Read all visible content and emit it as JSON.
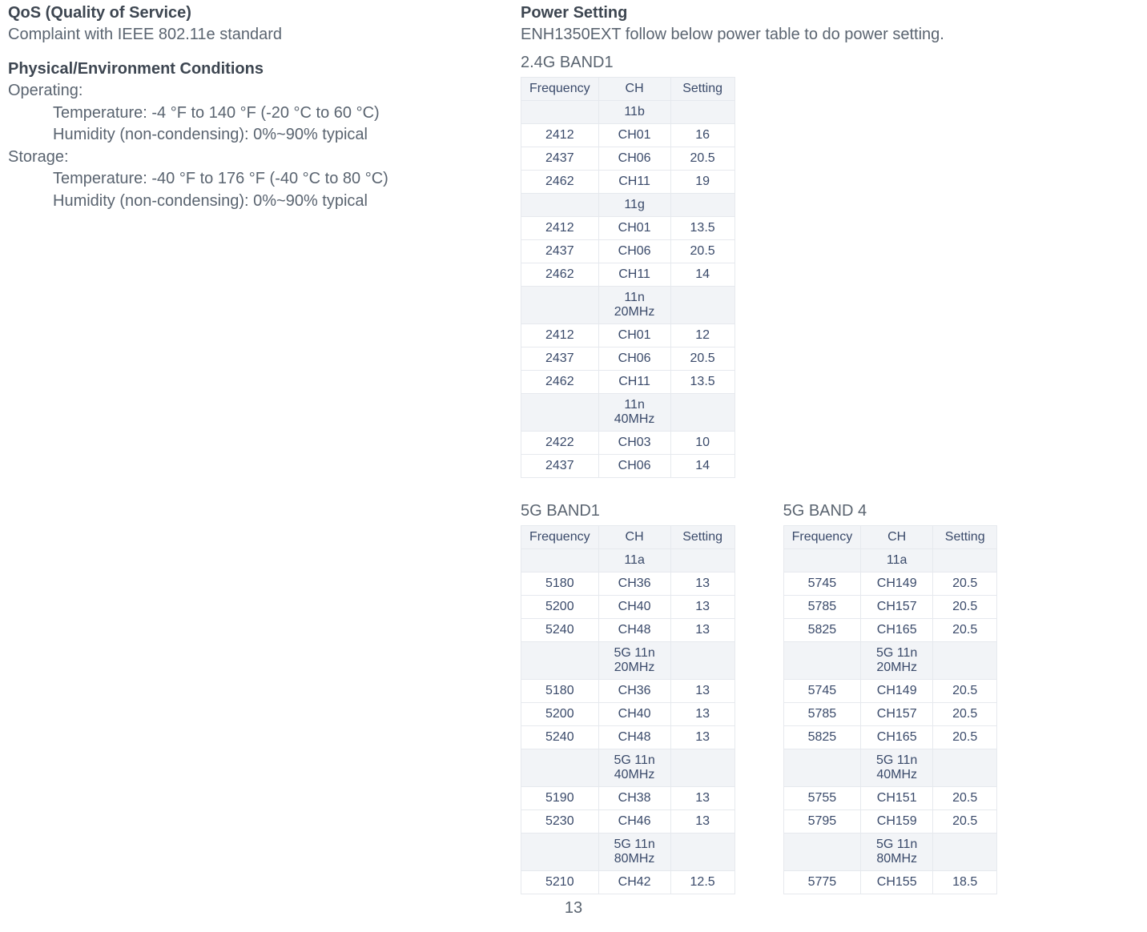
{
  "left": {
    "qos": {
      "title": "QoS (Quality of Service)",
      "text": "Complaint with IEEE 802.11e standard"
    },
    "env": {
      "title": "Physical/Environment Conditions",
      "operating_label": "Operating:",
      "op_temp": "Temperature: -4 °F to 140 °F (-20 °C to 60 °C)",
      "op_hum": "Humidity (non-condensing): 0%~90% typical",
      "storage_label": "Storage:",
      "st_temp": "Temperature: -40 °F to 176 °F (-40 °C to 80 °C)",
      "st_hum": "Humidity (non-condensing): 0%~90% typical"
    }
  },
  "right": {
    "power": {
      "title": "Power Setting",
      "text": "ENH1350EXT follow below power table to do power setting."
    },
    "band24": {
      "label": "2.4G BAND1",
      "headers": [
        "Frequency",
        "CH",
        "Setting"
      ],
      "rows": [
        {
          "type": "mode",
          "ch": "11b"
        },
        {
          "freq": "2412",
          "ch": "CH01",
          "set": "16"
        },
        {
          "freq": "2437",
          "ch": "CH06",
          "set": "20.5"
        },
        {
          "freq": "2462",
          "ch": "CH11",
          "set": "19"
        },
        {
          "type": "mode",
          "ch": "11g"
        },
        {
          "freq": "2412",
          "ch": "CH01",
          "set": "13.5"
        },
        {
          "freq": "2437",
          "ch": "CH06",
          "set": "20.5"
        },
        {
          "freq": "2462",
          "ch": "CH11",
          "set": "14"
        },
        {
          "type": "mode",
          "ch": "11n 20MHz"
        },
        {
          "freq": "2412",
          "ch": "CH01",
          "set": "12"
        },
        {
          "freq": "2437",
          "ch": "CH06",
          "set": "20.5"
        },
        {
          "freq": "2462",
          "ch": "CH11",
          "set": "13.5"
        },
        {
          "type": "mode",
          "ch": "11n 40MHz"
        },
        {
          "freq": "2422",
          "ch": "CH03",
          "set": "10"
        },
        {
          "freq": "2437",
          "ch": "CH06",
          "set": "14"
        }
      ]
    },
    "band5_1": {
      "label": "5G BAND1",
      "headers": [
        "Frequency",
        "CH",
        "Setting"
      ],
      "rows": [
        {
          "type": "mode",
          "ch": "11a"
        },
        {
          "freq": "5180",
          "ch": "CH36",
          "set": "13"
        },
        {
          "freq": "5200",
          "ch": "CH40",
          "set": "13"
        },
        {
          "freq": "5240",
          "ch": "CH48",
          "set": "13"
        },
        {
          "type": "mode",
          "ch": "5G 11n\n20MHz"
        },
        {
          "freq": "5180",
          "ch": "CH36",
          "set": "13"
        },
        {
          "freq": "5200",
          "ch": "CH40",
          "set": "13"
        },
        {
          "freq": "5240",
          "ch": "CH48",
          "set": "13"
        },
        {
          "type": "mode",
          "ch": "5G 11n\n40MHz"
        },
        {
          "freq": "5190",
          "ch": "CH38",
          "set": "13"
        },
        {
          "freq": "5230",
          "ch": "CH46",
          "set": "13"
        },
        {
          "type": "mode",
          "ch": "5G 11n\n80MHz"
        },
        {
          "freq": "5210",
          "ch": "CH42",
          "set": "12.5"
        }
      ]
    },
    "band5_4": {
      "label": "5G BAND 4",
      "headers": [
        "Frequency",
        "CH",
        "Setting"
      ],
      "rows": [
        {
          "type": "mode",
          "ch": "11a"
        },
        {
          "freq": "5745",
          "ch": "CH149",
          "set": "20.5"
        },
        {
          "freq": "5785",
          "ch": "CH157",
          "set": "20.5"
        },
        {
          "freq": "5825",
          "ch": "CH165",
          "set": "20.5"
        },
        {
          "type": "mode",
          "ch": "5G 11n\n20MHz"
        },
        {
          "freq": "5745",
          "ch": "CH149",
          "set": "20.5"
        },
        {
          "freq": "5785",
          "ch": "CH157",
          "set": "20.5"
        },
        {
          "freq": "5825",
          "ch": "CH165",
          "set": "20.5"
        },
        {
          "type": "mode",
          "ch": "5G 11n\n40MHz"
        },
        {
          "freq": "5755",
          "ch": "CH151",
          "set": "20.5"
        },
        {
          "freq": "5795",
          "ch": "CH159",
          "set": "20.5"
        },
        {
          "type": "mode",
          "ch": "5G 11n\n80MHz"
        },
        {
          "freq": "5775",
          "ch": "CH155",
          "set": "18.5"
        }
      ]
    }
  },
  "page_number": "13",
  "colors": {
    "heading": "#3d4651",
    "body": "#5a6470",
    "table_text": "#3a4a6a",
    "table_header_bg": "#f2f4f7",
    "table_border": "#e6e9ee",
    "background": "#ffffff"
  },
  "fonts": {
    "heading_size_pt": 15,
    "body_size_pt": 15,
    "table_size_pt": 12
  }
}
